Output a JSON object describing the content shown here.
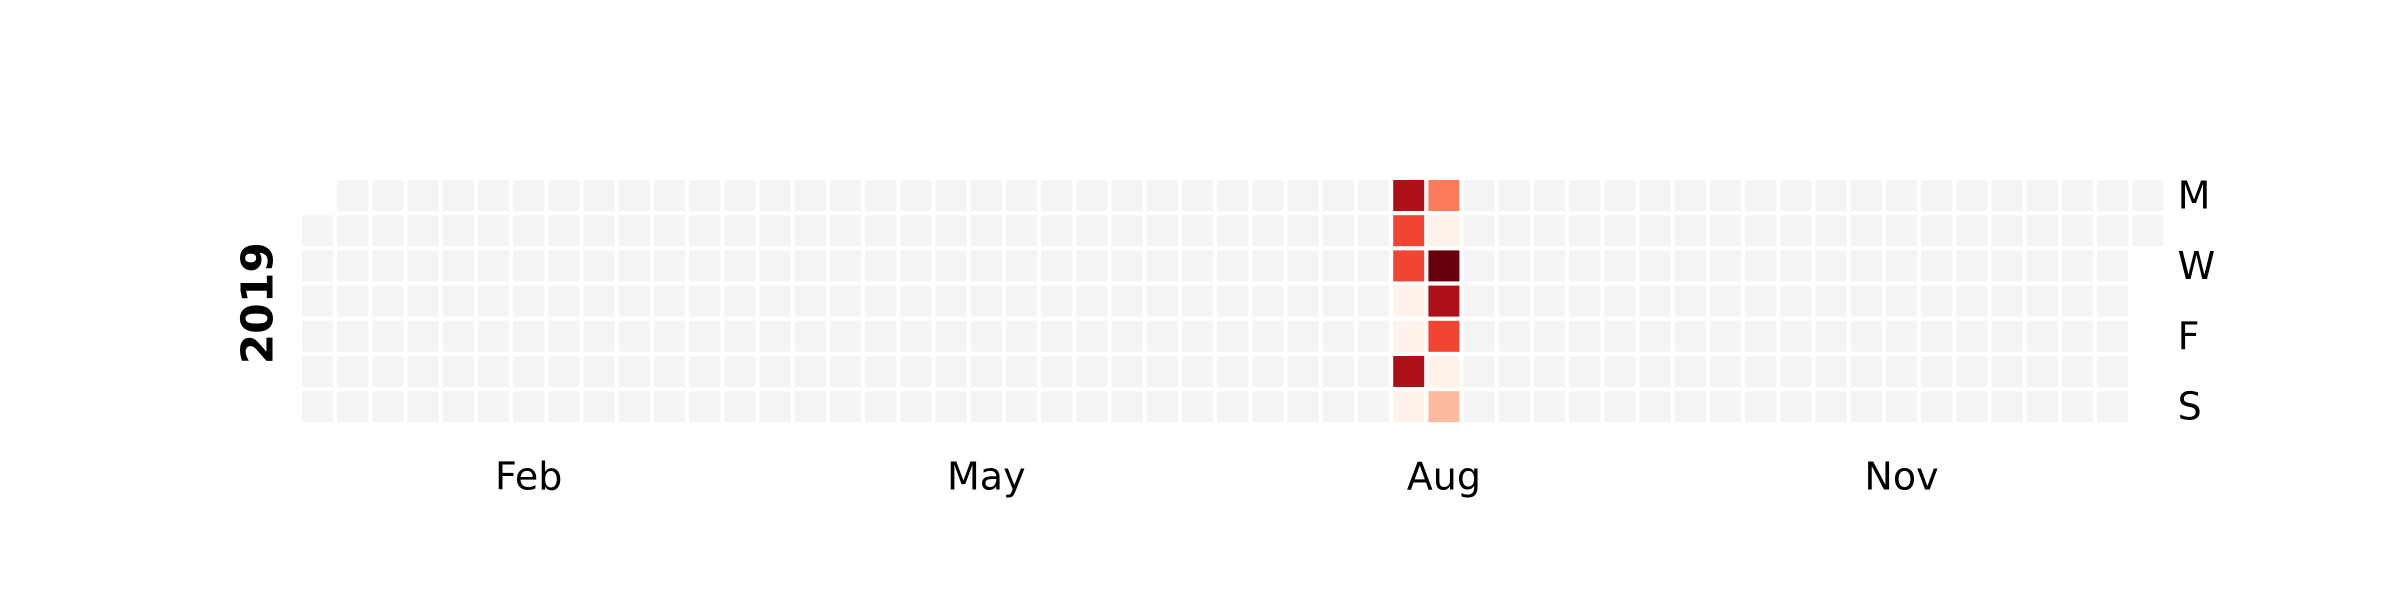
{
  "chart_data": {
    "type": "heatmap",
    "title": "",
    "year_label": "2019",
    "year": 2019,
    "month_labels": [
      "Feb",
      "May",
      "Aug",
      "Nov"
    ],
    "month_label_months": [
      2,
      5,
      8,
      11
    ],
    "weekday_labels": [
      "M",
      "W",
      "F",
      "S"
    ],
    "weekday_label_rows": [
      0,
      2,
      4,
      6
    ],
    "empty_color": "#f4f4f4",
    "colormap": "Reds",
    "legend": "none",
    "grid": false,
    "data": [
      {
        "date": "2019-08-05",
        "value": 0.85
      },
      {
        "date": "2019-08-06",
        "value": 0.6
      },
      {
        "date": "2019-08-07",
        "value": 0.6
      },
      {
        "date": "2019-08-08",
        "value": 0.02
      },
      {
        "date": "2019-08-09",
        "value": 0.02
      },
      {
        "date": "2019-08-10",
        "value": 0.85
      },
      {
        "date": "2019-08-11",
        "value": 0.02
      },
      {
        "date": "2019-08-12",
        "value": 0.45
      },
      {
        "date": "2019-08-13",
        "value": 0.02
      },
      {
        "date": "2019-08-14",
        "value": 1.0
      },
      {
        "date": "2019-08-15",
        "value": 0.85
      },
      {
        "date": "2019-08-16",
        "value": 0.6
      },
      {
        "date": "2019-08-17",
        "value": 0.02
      },
      {
        "date": "2019-08-18",
        "value": 0.25
      }
    ]
  }
}
